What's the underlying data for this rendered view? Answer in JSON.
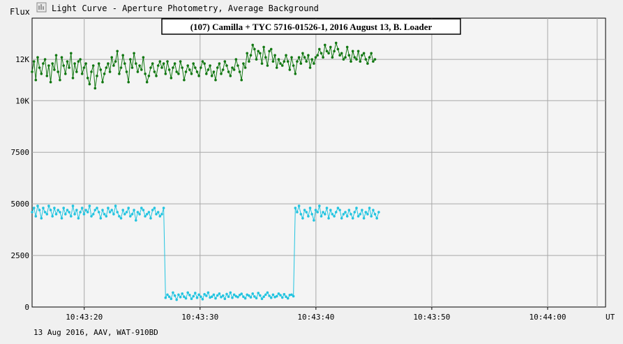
{
  "header": {
    "flux_label": "Flux",
    "window_title": "Light Curve - Aperture Photometry, Average Background",
    "icon": "chart-icon"
  },
  "footer": {
    "info": "13 Aug 2016, AAV, WAT-910BD"
  },
  "chart_data": {
    "type": "line",
    "title": "(107) Camilla + TYC 5716-01526-1, 2016 August 13, B. Loader",
    "xlabel": "UT",
    "ylabel": "Flux",
    "x_range": [
      "10:43:15.5",
      "10:44:05"
    ],
    "ylim": [
      0,
      14000
    ],
    "x_ticks": [
      "10:43:20",
      "10:43:30",
      "10:43:40",
      "10:43:50",
      "10:44:00"
    ],
    "y_ticks": [
      {
        "value": 0,
        "label": "0"
      },
      {
        "value": 2500,
        "label": "2500"
      },
      {
        "value": 5000,
        "label": "5000"
      },
      {
        "value": 7500,
        "label": "7500"
      },
      {
        "value": 10000,
        "label": "10K"
      },
      {
        "value": 12000,
        "label": "12K"
      }
    ],
    "grid": true,
    "series": [
      {
        "color": "#117711",
        "sampled_every_s": 0.16,
        "values": [
          11400,
          11900,
          11000,
          12100,
          11600,
          11300,
          11800,
          12000,
          11200,
          11700,
          10900,
          11800,
          11500,
          12200,
          11400,
          11000,
          12100,
          11700,
          11300,
          11900,
          11600,
          12300,
          11100,
          11800,
          11400,
          11900,
          12000,
          11300,
          11600,
          11800,
          11100,
          10800,
          11400,
          11700,
          10600,
          11200,
          11800,
          11500,
          10900,
          11300,
          11600,
          11800,
          11400,
          12100,
          11700,
          11900,
          12400,
          11300,
          11600,
          12200,
          11800,
          11400,
          10900,
          12000,
          11600,
          12300,
          11800,
          11400,
          11700,
          11500,
          12100,
          11300,
          10900,
          11200,
          11600,
          11800,
          11400,
          11200,
          11700,
          11900,
          11600,
          11800,
          11300,
          11900,
          11500,
          11100,
          11600,
          11800,
          11400,
          11300,
          11900,
          11600,
          11000,
          11400,
          11700,
          11500,
          11300,
          11800,
          11600,
          11400,
          11200,
          11600,
          11900,
          11800,
          11300,
          11500,
          11700,
          11200,
          11400,
          11000,
          11600,
          11800,
          11300,
          11500,
          11900,
          11700,
          11400,
          11200,
          11600,
          11500,
          12000,
          11700,
          11400,
          11000,
          11800,
          11600,
          12300,
          11900,
          12200,
          12700,
          12500,
          12000,
          12400,
          12300,
          11800,
          12600,
          12100,
          11700,
          12400,
          12500,
          11900,
          12200,
          11600,
          12000,
          11800,
          11700,
          11900,
          12200,
          11900,
          11500,
          12100,
          11700,
          11300,
          11900,
          12100,
          11800,
          12300,
          12100,
          11900,
          12200,
          11600,
          12000,
          11800,
          12100,
          12200,
          12500,
          12300,
          12100,
          12700,
          12400,
          12300,
          12600,
          12100,
          12400,
          12800,
          12500,
          12200,
          12300,
          12000,
          12100,
          12600,
          12200,
          11900,
          12400,
          12100,
          12000,
          12400,
          11900,
          12200,
          12300,
          12000,
          11800,
          12100,
          12300,
          11900,
          12000
        ]
      },
      {
        "color": "#22c4e0",
        "sampled_every_s": 0.16,
        "values": [
          4600,
          4800,
          4400,
          4900,
          4700,
          4300,
          4800,
          4600,
          4500,
          4900,
          4700,
          4400,
          4800,
          4500,
          4700,
          4600,
          4300,
          4800,
          4500,
          4700,
          4600,
          4400,
          4900,
          4500,
          4700,
          4300,
          4600,
          4800,
          4500,
          4700,
          4600,
          4900,
          4400,
          4500,
          4700,
          4800,
          4600,
          4300,
          4700,
          4500,
          4400,
          4800,
          4600,
          4700,
          4500,
          4900,
          4600,
          4400,
          4300,
          4700,
          4500,
          4600,
          4800,
          4400,
          4500,
          4700,
          4200,
          4600,
          4500,
          4800,
          4700,
          4400,
          4500,
          4600,
          4300,
          4700,
          4800,
          4500,
          4600,
          4400,
          4500,
          4800,
          450,
          600,
          500,
          400,
          700,
          550,
          350,
          600,
          480,
          650,
          500,
          420,
          700,
          580,
          400,
          520,
          680,
          450,
          600,
          500,
          380,
          620,
          540,
          700,
          460,
          500,
          600,
          420,
          560,
          650,
          480,
          550,
          400,
          630,
          500,
          700,
          450,
          600,
          520,
          480,
          580,
          640,
          500,
          420,
          600,
          550,
          470,
          650,
          510,
          430,
          680,
          560,
          400,
          500,
          600,
          700,
          540,
          450,
          600,
          480,
          520,
          650,
          570,
          460,
          620,
          500,
          420,
          580,
          600,
          520,
          4800,
          4600,
          4900,
          4500,
          4300,
          4700,
          4600,
          4400,
          4800,
          4500,
          4200,
          4700,
          4600,
          4900,
          4400,
          4600,
          4500,
          4800,
          4300,
          4700,
          4500,
          4400,
          4600,
          4800,
          4700,
          4300,
          4500,
          4600,
          4400,
          4700,
          4500,
          4300,
          4600,
          4800,
          4400,
          4500,
          4700,
          4300,
          4600,
          4500,
          4800,
          4400,
          4700,
          4500,
          4300,
          4600
        ]
      }
    ]
  }
}
